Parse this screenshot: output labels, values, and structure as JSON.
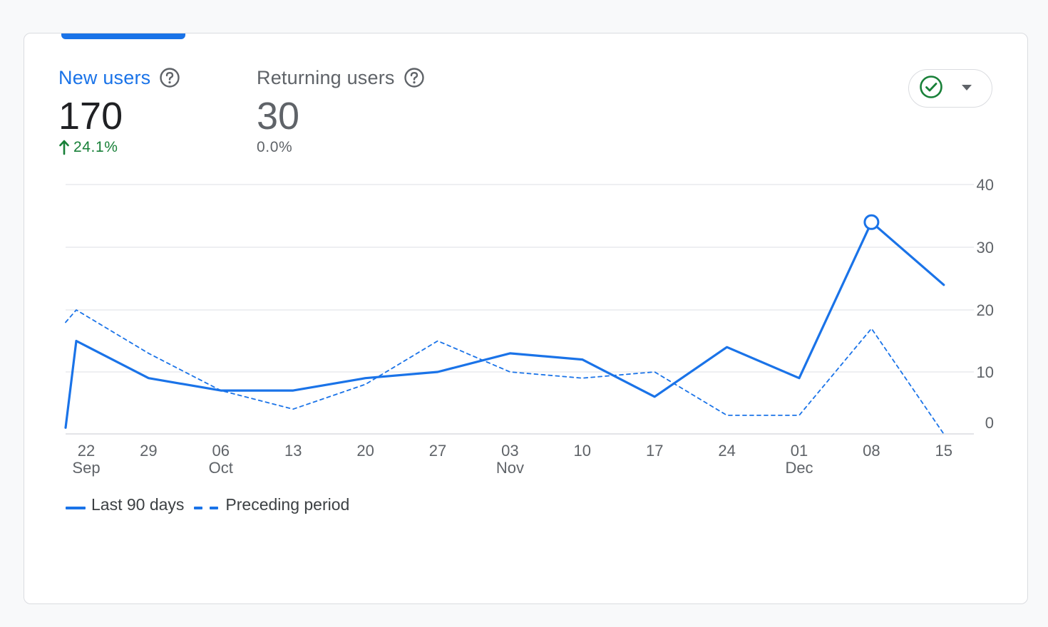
{
  "metrics": [
    {
      "label": "New users",
      "value": "170",
      "change": "24.1%",
      "direction": "up"
    },
    {
      "label": "Returning users",
      "value": "30",
      "change": "0.0%",
      "direction": "none"
    }
  ],
  "icons": {
    "help": "help-circle-icon",
    "arrow_up": "arrow-up-icon",
    "check": "check-circle-icon",
    "dropdown": "caret-down-icon"
  },
  "colors": {
    "accent": "#1a73e8",
    "positive": "#188038",
    "check": "#188038",
    "text_muted": "#5f6368"
  },
  "legend": {
    "series_1": "Last 90 days",
    "series_2": "Preceding period"
  },
  "chart_data": {
    "type": "line",
    "y_axis_side": "right",
    "ylim": [
      0,
      40
    ],
    "y_ticks": [
      0,
      10,
      20,
      30,
      40
    ],
    "x_ticks": [
      {
        "day": "22",
        "month": "Sep"
      },
      {
        "day": "29",
        "month": ""
      },
      {
        "day": "06",
        "month": "Oct"
      },
      {
        "day": "13",
        "month": ""
      },
      {
        "day": "20",
        "month": ""
      },
      {
        "day": "27",
        "month": ""
      },
      {
        "day": "03",
        "month": "Nov"
      },
      {
        "day": "10",
        "month": ""
      },
      {
        "day": "17",
        "month": ""
      },
      {
        "day": "24",
        "month": ""
      },
      {
        "day": "01",
        "month": "Dec"
      },
      {
        "day": "08",
        "month": ""
      },
      {
        "day": "15",
        "month": ""
      }
    ],
    "series": [
      {
        "name": "Last 90 days",
        "style": "solid",
        "highlight_index": 12,
        "points": [
          {
            "x": "2023-09-20",
            "y": 1
          },
          {
            "x": "2023-09-22",
            "y": 15
          },
          {
            "x": "2023-09-29",
            "y": 9
          },
          {
            "x": "2023-10-06",
            "y": 7
          },
          {
            "x": "2023-10-13",
            "y": 7
          },
          {
            "x": "2023-10-20",
            "y": 9
          },
          {
            "x": "2023-10-27",
            "y": 10
          },
          {
            "x": "2023-11-03",
            "y": 13
          },
          {
            "x": "2023-11-10",
            "y": 12
          },
          {
            "x": "2023-11-17",
            "y": 6
          },
          {
            "x": "2023-11-24",
            "y": 14
          },
          {
            "x": "2023-12-01",
            "y": 9
          },
          {
            "x": "2023-12-08",
            "y": 34
          },
          {
            "x": "2023-12-15",
            "y": 24
          }
        ]
      },
      {
        "name": "Preceding period",
        "style": "dashed",
        "points": [
          {
            "x": "2023-09-20",
            "y": 18
          },
          {
            "x": "2023-09-22",
            "y": 20
          },
          {
            "x": "2023-09-29",
            "y": 13
          },
          {
            "x": "2023-10-06",
            "y": 7
          },
          {
            "x": "2023-10-13",
            "y": 4
          },
          {
            "x": "2023-10-20",
            "y": 8
          },
          {
            "x": "2023-10-27",
            "y": 15
          },
          {
            "x": "2023-11-03",
            "y": 10
          },
          {
            "x": "2023-11-10",
            "y": 9
          },
          {
            "x": "2023-11-17",
            "y": 10
          },
          {
            "x": "2023-11-24",
            "y": 3
          },
          {
            "x": "2023-12-01",
            "y": 3
          },
          {
            "x": "2023-12-08",
            "y": 17
          },
          {
            "x": "2023-12-15",
            "y": 0
          }
        ]
      }
    ]
  }
}
